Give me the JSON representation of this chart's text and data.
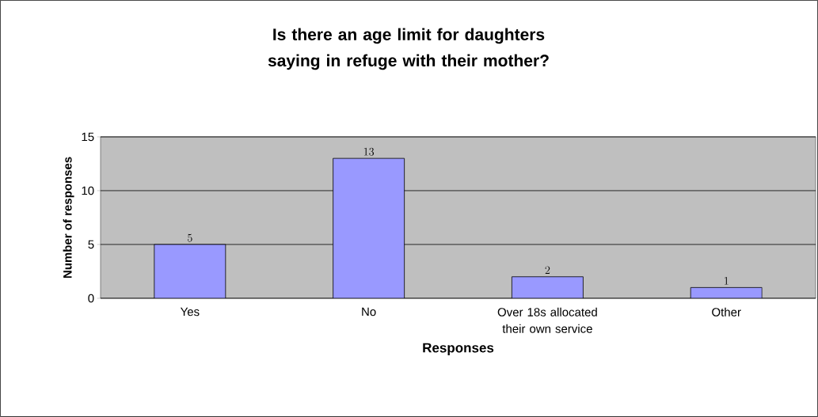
{
  "chart_data": {
    "type": "bar",
    "title": "Is there an age limit for daughters saying in refuge with their mother?",
    "categories": [
      "Yes",
      "No",
      "Over 18s allocated their own service",
      "Other"
    ],
    "values": [
      5,
      13,
      2,
      1
    ],
    "color": "#9999ff",
    "xlabel": "Responses",
    "ylabel": "Number of responses",
    "ylim": [
      0,
      15
    ],
    "yticks": [
      0,
      5,
      10,
      15
    ],
    "grid": "y",
    "data_labels": true
  }
}
